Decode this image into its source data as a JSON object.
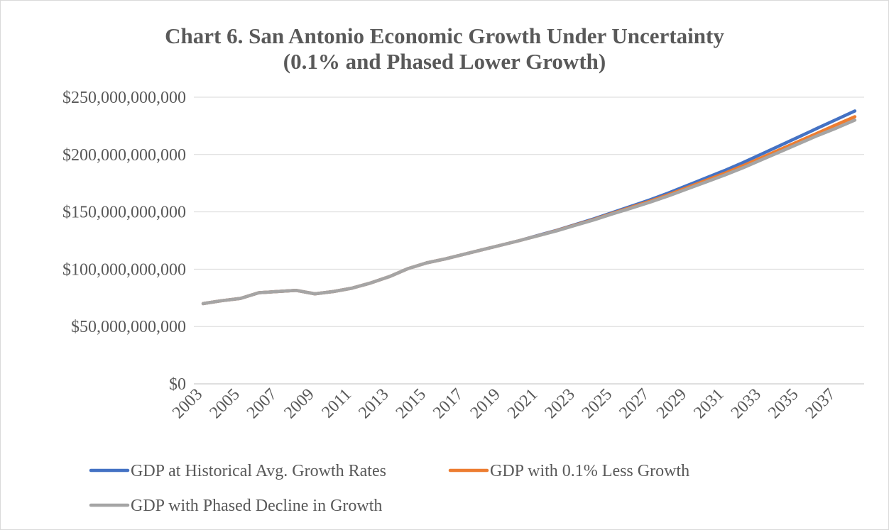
{
  "chart_data": {
    "type": "line",
    "title": "Chart 6. San Antonio Economic Growth Under Uncertainty",
    "subtitle": "(0.1% and Phased Lower Growth)",
    "xlabel": "",
    "ylabel": "",
    "ylim": [
      0,
      250000000000
    ],
    "y_ticks": [
      0,
      50000000000,
      100000000000,
      150000000000,
      200000000000,
      250000000000
    ],
    "y_tick_labels": [
      "$0",
      "$50,000,000,000",
      "$100,000,000,000",
      "$150,000,000,000",
      "$200,000,000,000",
      "$250,000,000,000"
    ],
    "x": [
      2003,
      2004,
      2005,
      2006,
      2007,
      2008,
      2009,
      2010,
      2011,
      2012,
      2013,
      2014,
      2015,
      2016,
      2017,
      2018,
      2019,
      2020,
      2021,
      2022,
      2023,
      2024,
      2025,
      2026,
      2027,
      2028,
      2029,
      2030,
      2031,
      2032,
      2033,
      2034,
      2035,
      2036,
      2037,
      2038
    ],
    "x_tick_labels": [
      "2003",
      "2005",
      "2007",
      "2009",
      "2011",
      "2013",
      "2015",
      "2017",
      "2019",
      "2021",
      "2023",
      "2025",
      "2027",
      "2029",
      "2031",
      "2033",
      "2035",
      "2037"
    ],
    "grid": true,
    "legend_position": "bottom",
    "series": [
      {
        "name": "GDP at Historical Avg. Growth Rates",
        "color": "#4472c4",
        "values": [
          70000000000,
          72500000000,
          74500000000,
          79500000000,
          80500000000,
          81500000000,
          78500000000,
          80500000000,
          83500000000,
          88000000000,
          93500000000,
          100500000000,
          105500000000,
          109000000000,
          113000000000,
          117000000000,
          121000000000,
          125000000000,
          129500000000,
          134000000000,
          139000000000,
          144000000000,
          149500000000,
          155000000000,
          160500000000,
          166500000000,
          173000000000,
          179500000000,
          186000000000,
          193000000000,
          200500000000,
          208000000000,
          215500000000,
          223000000000,
          230500000000,
          238000000000
        ]
      },
      {
        "name": "GDP with 0.1% Less Growth",
        "color": "#ed7d31",
        "values": [
          70000000000,
          72500000000,
          74500000000,
          79500000000,
          80500000000,
          81500000000,
          78500000000,
          80500000000,
          83500000000,
          88000000000,
          93500000000,
          100500000000,
          105500000000,
          109000000000,
          113000000000,
          117000000000,
          121000000000,
          125000000000,
          129300000000,
          133700000000,
          138600000000,
          143400000000,
          148800000000,
          154000000000,
          159300000000,
          165000000000,
          171200000000,
          177400000000,
          183600000000,
          190300000000,
          197400000000,
          204500000000,
          211600000000,
          218700000000,
          226000000000,
          233000000000
        ]
      },
      {
        "name": "GDP with Phased Decline in Growth",
        "color": "#a5a5a5",
        "values": [
          70000000000,
          72500000000,
          74500000000,
          79500000000,
          80500000000,
          81500000000,
          78500000000,
          80500000000,
          83500000000,
          88000000000,
          93500000000,
          100500000000,
          105500000000,
          109000000000,
          113000000000,
          117000000000,
          121000000000,
          125000000000,
          129200000000,
          133500000000,
          138300000000,
          143000000000,
          148300000000,
          153300000000,
          158400000000,
          164000000000,
          170000000000,
          176000000000,
          182000000000,
          188500000000,
          195500000000,
          202500000000,
          209500000000,
          216500000000,
          223000000000,
          230000000000
        ]
      }
    ]
  }
}
